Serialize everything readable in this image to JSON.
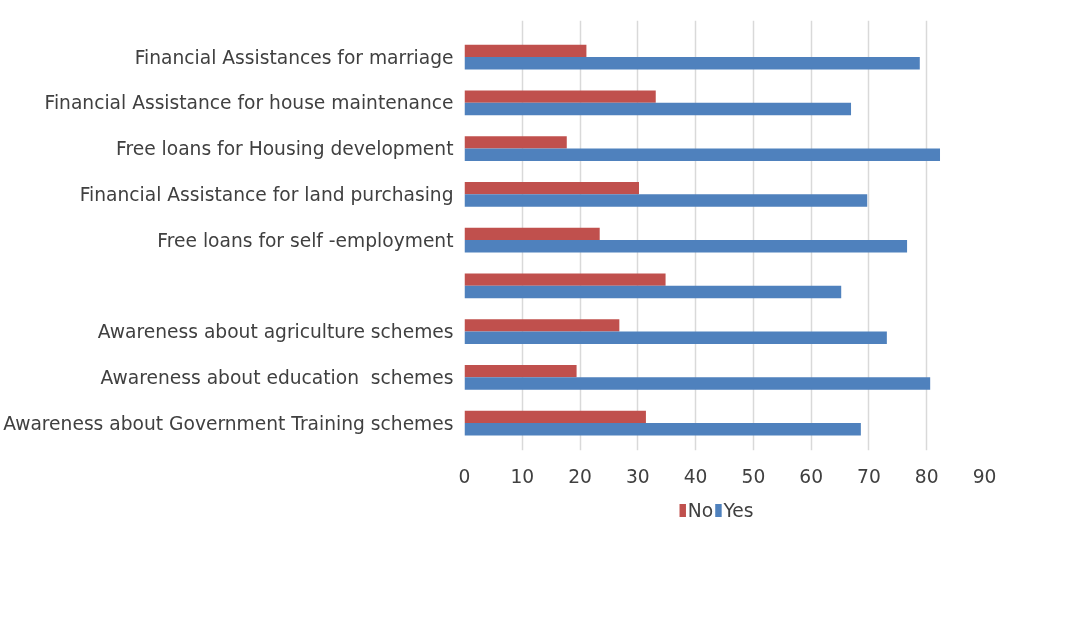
{
  "chart_data": {
    "type": "bar",
    "orientation": "horizontal",
    "categories": [
      "Financial Assistances for marriage",
      "Financial Assistance for house maintenance",
      "Free loans for Housing development",
      "Financial Assistance for land purchasing",
      "Free loans for self -employment",
      null,
      "Awareness about agriculture schemes",
      "Awareness about education  schemes",
      "Awareness about Government Training schemes"
    ],
    "series": [
      {
        "name": "No",
        "color": "#c0504d",
        "values": [
          21.1,
          33.1,
          17.7,
          30.2,
          23.4,
          34.8,
          26.8,
          19.4,
          31.4
        ]
      },
      {
        "name": "Yes",
        "color": "#4f81bd",
        "values": [
          78.8,
          66.9,
          82.3,
          69.7,
          76.6,
          65.2,
          73.1,
          80.6,
          68.6
        ]
      }
    ],
    "xlim": [
      0,
      90
    ],
    "xticks": [
      0,
      10,
      20,
      30,
      40,
      50,
      60,
      70,
      80,
      90
    ],
    "grid": "x",
    "legend": "bottom"
  }
}
